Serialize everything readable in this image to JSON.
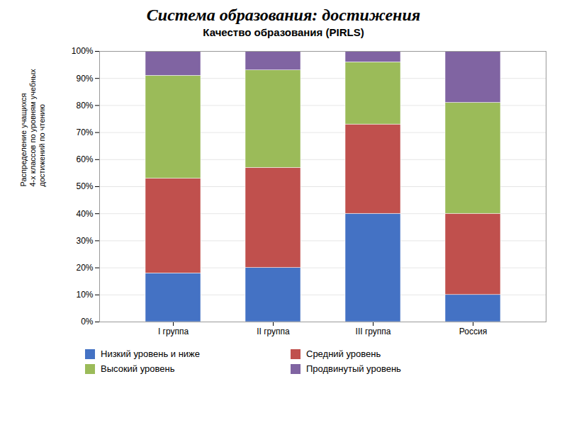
{
  "chart_data": {
    "type": "bar",
    "stacked": true,
    "title": "Система образования: достижения",
    "subtitle": "Качество образования (PIRLS)",
    "ylabel": "Распределение учащихся\n4-х классов по уровням учебных\nдостижений по чтению",
    "categories": [
      "I группа",
      "II группа",
      "III группа",
      "Россия"
    ],
    "series": [
      {
        "name": "Низкий уровень и ниже",
        "color": "#4472C4",
        "values": [
          18,
          20,
          40,
          10
        ]
      },
      {
        "name": "Средний уровень",
        "color": "#C0504D",
        "values": [
          35,
          37,
          33,
          30
        ]
      },
      {
        "name": "Высокий уровень",
        "color": "#9BBB59",
        "values": [
          38,
          36,
          23,
          41
        ]
      },
      {
        "name": "Продвинутый уровень",
        "color": "#8064A2",
        "values": [
          9,
          7,
          4,
          19
        ]
      }
    ],
    "ylim": [
      0,
      100
    ],
    "yticks": [
      {
        "value": 0,
        "label": "0%"
      },
      {
        "value": 10,
        "label": "10%"
      },
      {
        "value": 20,
        "label": "20%"
      },
      {
        "value": 30,
        "label": "30%"
      },
      {
        "value": 40,
        "label": "40%"
      },
      {
        "value": 50,
        "label": "50%"
      },
      {
        "value": 60,
        "label": "60%"
      },
      {
        "value": 70,
        "label": "70%"
      },
      {
        "value": 80,
        "label": "80%"
      },
      {
        "value": 90,
        "label": "90%"
      },
      {
        "value": 100,
        "label": "100%"
      }
    ],
    "grid": true,
    "legend": "bottom"
  }
}
